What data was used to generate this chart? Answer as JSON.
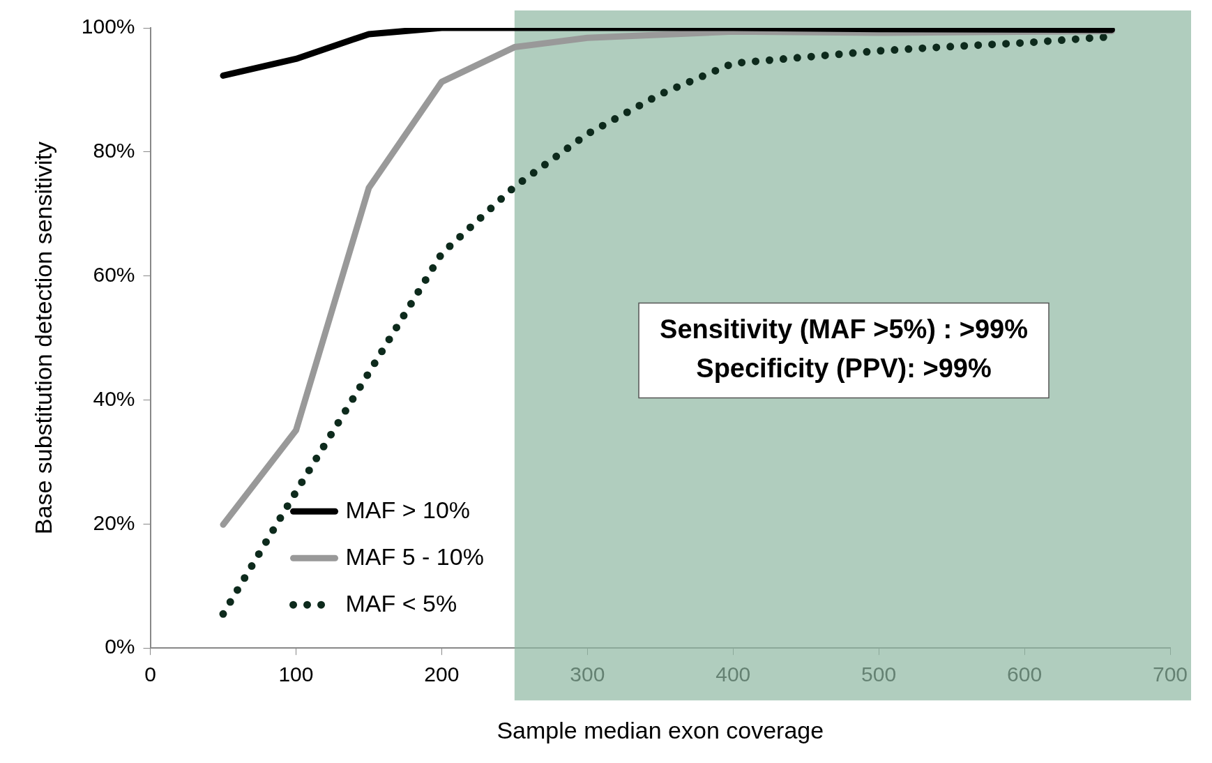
{
  "chart_data": {
    "type": "line",
    "xlabel": "Sample median exon coverage",
    "ylabel": "Base substitution detection sensitivity",
    "xlim": [
      0,
      700
    ],
    "xticks": [
      0,
      100,
      200,
      300,
      400,
      500,
      600,
      700
    ],
    "ylim": [
      0,
      100
    ],
    "yticks": [
      {
        "value": 0,
        "label": "0%"
      },
      {
        "value": 20,
        "label": "20%"
      },
      {
        "value": 40,
        "label": "40%"
      },
      {
        "value": 60,
        "label": "60%"
      },
      {
        "value": 80,
        "label": "80%"
      },
      {
        "value": 100,
        "label": "100%"
      }
    ],
    "grid": false,
    "legend": "bottom left",
    "marker": "none",
    "series": [
      {
        "name": "MAF > 10%",
        "color": "#000000",
        "line_style": "solid",
        "x": [
          50,
          100,
          150,
          200,
          300,
          400,
          500,
          660
        ],
        "values": [
          92.3,
          95,
          99,
          100,
          100,
          100,
          99.8,
          99.7
        ]
      },
      {
        "name": "MAF 5 - 10%",
        "color": "#999999",
        "line_style": "solid",
        "x": [
          50,
          100,
          150,
          200,
          250,
          300,
          400,
          500,
          660
        ],
        "values": [
          19.9,
          35.1,
          74.2,
          91.3,
          96.9,
          98.4,
          99.4,
          99.2,
          99.5
        ]
      },
      {
        "name": "MAF < 5%",
        "color": "#0d2a1c",
        "line_style": "dotted",
        "x": [
          50,
          100,
          150,
          200,
          250,
          300,
          350,
          400,
          450,
          500,
          550,
          600,
          660
        ],
        "values": [
          5.5,
          25.2,
          44.4,
          63.6,
          74.4,
          82.9,
          89.3,
          94.3,
          95.3,
          96.3,
          97,
          97.6,
          98.6
        ]
      }
    ],
    "bands": [
      {
        "axis": "x",
        "from": 250,
        "to": 700,
        "color": "#8fb8a3"
      }
    ],
    "annotations": [
      "Sensitivity (MAF >5%) : >99%",
      "Specificity (PPV): >99%"
    ]
  }
}
